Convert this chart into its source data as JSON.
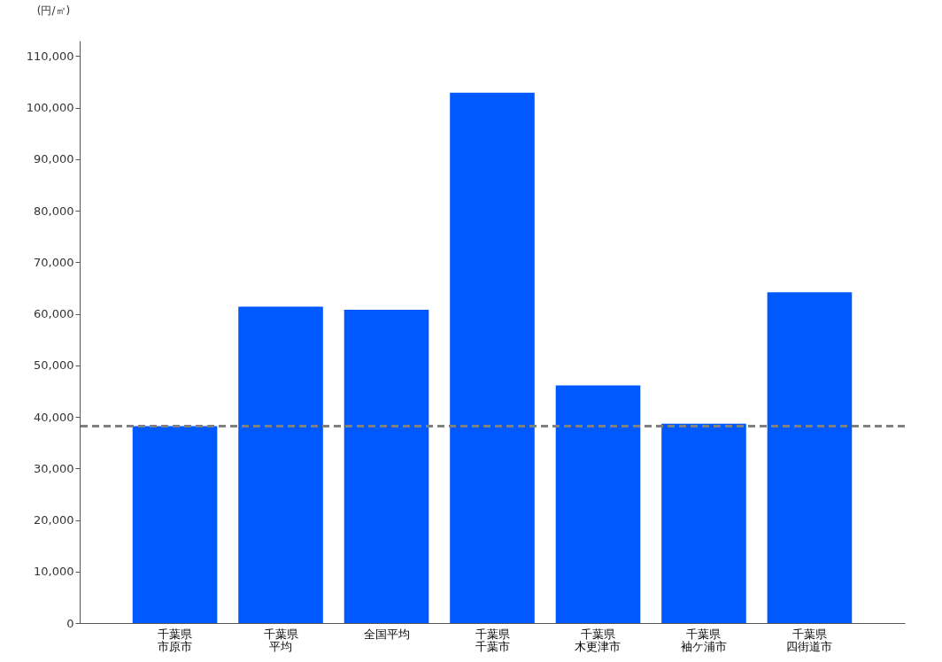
{
  "chart_data": {
    "type": "bar",
    "ylabel": "(円/㎡)",
    "categories": [
      "千葉県市原市",
      "千葉県平均",
      "全国平均",
      "千葉県千葉市",
      "千葉県木更津市",
      "千葉県袖ケ浦市",
      "千葉県四街道市"
    ],
    "values": [
      38200,
      61400,
      60800,
      102900,
      46100,
      38700,
      64200
    ],
    "color": "#0059ff",
    "ylim": [
      0,
      113000
    ],
    "yticks": [
      0,
      {
        "value": 10000,
        "label": "10,000"
      },
      {
        "value": 20000,
        "label": "20,000"
      },
      {
        "value": 30000,
        "label": "30,000"
      },
      {
        "value": 40000,
        "label": "40,000"
      },
      {
        "value": 50000,
        "label": "50,000"
      },
      {
        "value": 60000,
        "label": "60,000"
      },
      {
        "value": 70000,
        "label": "70,000"
      },
      {
        "value": 80000,
        "label": "80,000"
      },
      {
        "value": 90000,
        "label": "90,000"
      },
      {
        "value": 100000,
        "label": "100,000"
      },
      {
        "value": 110000,
        "label": "110,000"
      }
    ],
    "grid": false,
    "ref_lines": [
      {
        "axis": "y",
        "value": 38200,
        "color": "#808080",
        "line_style": "dashed"
      }
    ]
  }
}
